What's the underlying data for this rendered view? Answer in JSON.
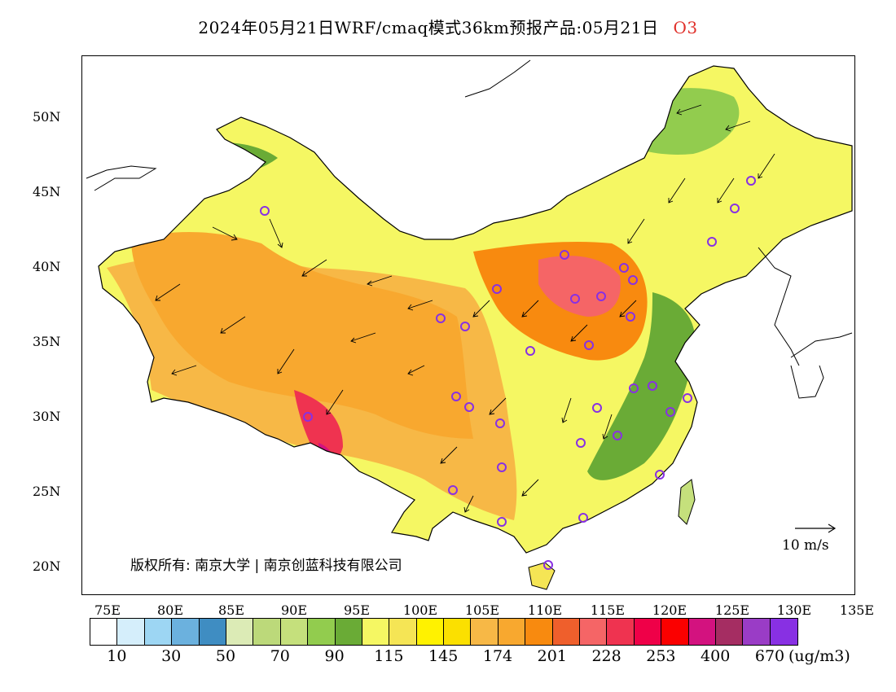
{
  "title": {
    "text": "2024年05月21日WRF/cmaq模式36km预报产品:05月21日",
    "species": "O3"
  },
  "axes": {
    "lat_labels": [
      "50N",
      "45N",
      "40N",
      "35N",
      "30N",
      "25N",
      "20N"
    ],
    "lon_labels": [
      "75E",
      "80E",
      "85E",
      "90E",
      "95E",
      "100E",
      "105E",
      "110E",
      "115E",
      "120E",
      "125E",
      "130E",
      "135E"
    ]
  },
  "copyright": "版权所有: 南京大学 | 南京创蓝科技有限公司",
  "wind_reference": "10 m/s",
  "colorbar": {
    "unit": "(ug/m3)",
    "labels": [
      "10",
      "30",
      "50",
      "70",
      "90",
      "115",
      "145",
      "174",
      "201",
      "228",
      "253",
      "400",
      "670"
    ],
    "colors": [
      "#ffffff",
      "#d5eefb",
      "#9dd6f3",
      "#6bb1de",
      "#3f8dc2",
      "#dcebb6",
      "#bcd97a",
      "#c5e07c",
      "#92cc4e",
      "#6aab36",
      "#f5f763",
      "#f5e555",
      "#fff200",
      "#fbe000",
      "#f7b846",
      "#f8a82f",
      "#f88a0f",
      "#ef5f2c",
      "#f56566",
      "#ef3350",
      "#ef0048",
      "#fb0000",
      "#d3127f",
      "#a52d62",
      "#9a3cc6",
      "#8830e3"
    ]
  }
}
